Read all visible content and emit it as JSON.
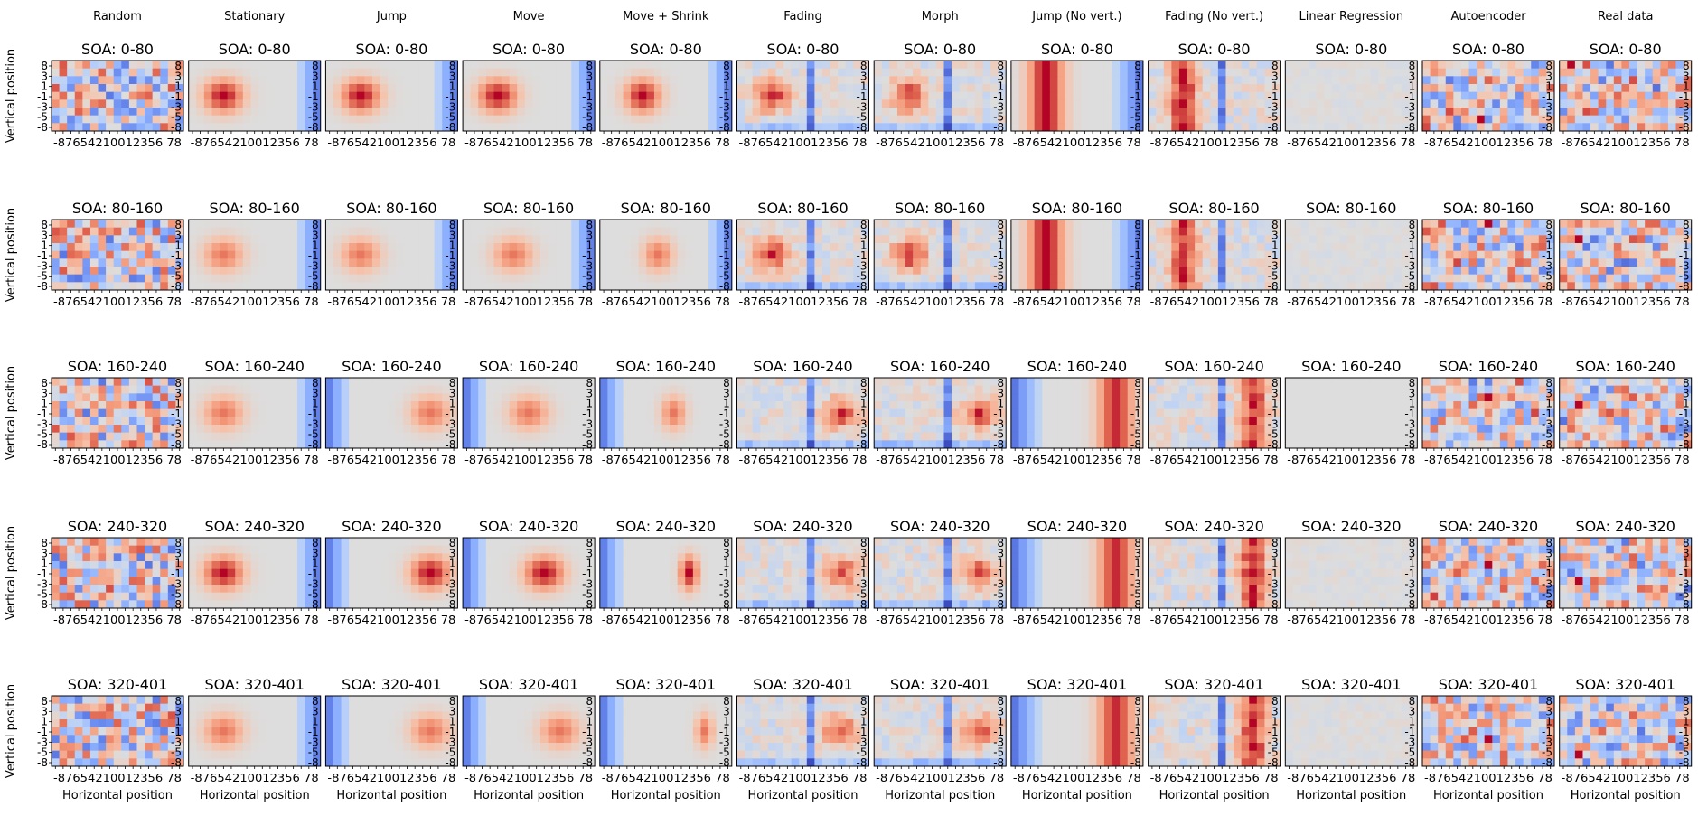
{
  "chart_data": {
    "type": "heatmap",
    "colormap": "coolwarm",
    "grid_size": [
      9,
      17
    ],
    "columns": [
      "Random",
      "Stationary",
      "Jump",
      "Move",
      "Move + Shrink",
      "Fading",
      "Morph",
      "Jump (No vert.)",
      "Fading (No vert.)",
      "Linear Regression",
      "Autoencoder",
      "Real data"
    ],
    "rows": [
      "SOA: 0-80",
      "SOA: 80-160",
      "SOA: 160-240",
      "SOA: 240-320",
      "SOA: 320-401"
    ],
    "xlabel": "Horizontal position",
    "ylabel": "Vertical position",
    "x_tick_labels": [
      "-8",
      "7",
      "6",
      "5",
      "4",
      "2",
      "1",
      "0",
      "0",
      "1",
      "2",
      "3",
      "5",
      "6",
      "7",
      "8"
    ],
    "x_tick_text": "-87654210012356 78",
    "y_tick_labels": [
      "8",
      "3",
      "1",
      "-1",
      "-3",
      "-5",
      "-8"
    ],
    "right_tick_labels": [
      "8",
      "3",
      "1",
      "-1",
      "-3",
      "-5",
      "-8"
    ],
    "value_range": [
      -1,
      1
    ],
    "blob_positions": {
      "Stationary": [
        -4,
        -4,
        -4,
        -4,
        -4
      ],
      "Jump": [
        -4,
        -4,
        5,
        5,
        5
      ],
      "Move": [
        -4,
        -2,
        0,
        2,
        4
      ],
      "Move + Shrink": [
        -3,
        -1,
        1,
        3,
        5
      ]
    }
  }
}
